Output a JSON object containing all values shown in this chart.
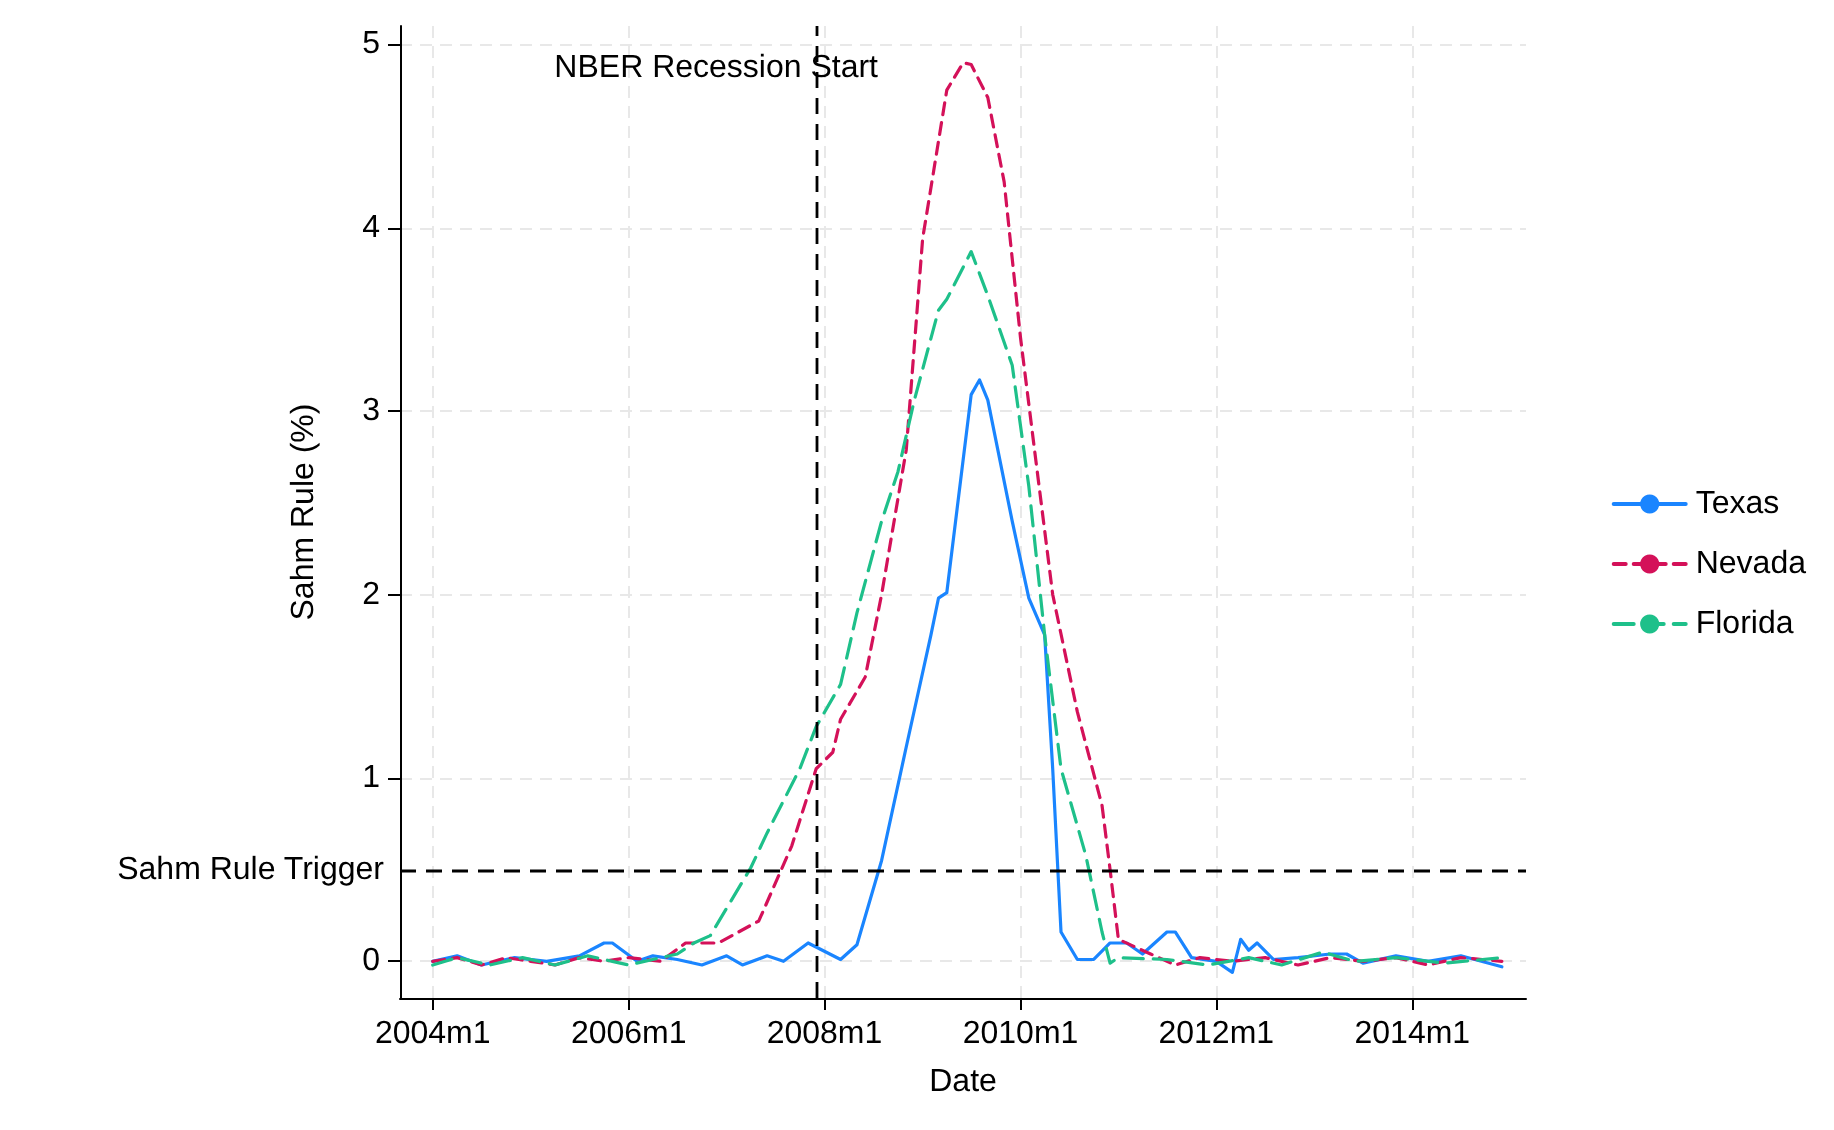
{
  "chart_data": {
    "type": "line",
    "xlabel": "Date",
    "ylabel": "Sahm Rule (%)",
    "xlim": [
      "2003-09",
      "2015-03"
    ],
    "ylim": [
      -0.2,
      5.1
    ],
    "xticks": [
      {
        "value": "2004-01",
        "label": "2004m1"
      },
      {
        "value": "2006-01",
        "label": "2006m1"
      },
      {
        "value": "2008-01",
        "label": "2008m1"
      },
      {
        "value": "2010-01",
        "label": "2010m1"
      },
      {
        "value": "2012-01",
        "label": "2012m1"
      },
      {
        "value": "2014-01",
        "label": "2014m1"
      }
    ],
    "yticks": [
      0,
      1,
      2,
      3,
      4,
      5
    ],
    "grid": true,
    "legend": "right",
    "marker": "none",
    "ref_lines": [
      {
        "axis": "x",
        "value": "2007-12",
        "label": "NBER Recession Start",
        "color": "#000000",
        "line_style": "dashed"
      },
      {
        "axis": "y",
        "value": 0.5,
        "label": "Sahm Rule Trigger",
        "color": "#000000",
        "line_style": "dashed"
      }
    ],
    "series": [
      {
        "name": "Texas",
        "color": "#1a85ff",
        "line_style": "solid",
        "x": [
          "2004-01",
          "2004-04",
          "2004-07",
          "2004-11",
          "2005-03",
          "2005-07",
          "2005-10",
          "2005-11",
          "2006-02",
          "2006-04",
          "2006-07",
          "2006-10",
          "2007-01",
          "2007-03",
          "2007-06",
          "2007-08",
          "2007-11",
          "2008-03",
          "2008-05",
          "2008-08",
          "2008-11",
          "2009-02",
          "2009-03",
          "2009-04",
          "2009-07",
          "2009-08",
          "2009-09",
          "2009-12",
          "2010-02",
          "2010-04",
          "2010-05",
          "2010-06",
          "2010-08",
          "2010-10",
          "2010-12",
          "2011-02",
          "2011-04",
          "2011-07",
          "2011-08",
          "2011-10",
          "2012-01",
          "2012-03",
          "2012-04",
          "2012-05",
          "2012-06",
          "2012-08",
          "2012-11",
          "2013-03",
          "2013-05",
          "2013-07",
          "2013-11",
          "2014-03",
          "2014-07",
          "2014-12"
        ],
        "values": [
          0,
          0.03,
          -0.02,
          0.02,
          0,
          0.03,
          0.1,
          0.1,
          0,
          0.03,
          0.01,
          -0.02,
          0.03,
          -0.02,
          0.03,
          0,
          0.1,
          0.01,
          0.09,
          0.55,
          1.17,
          1.78,
          1.98,
          2.01,
          3.09,
          3.17,
          3.06,
          2.4,
          1.98,
          1.78,
          1.05,
          0.16,
          0.01,
          0.01,
          0.1,
          0.1,
          0.04,
          0.16,
          0.16,
          0.02,
          0,
          -0.06,
          0.12,
          0.06,
          0.1,
          0.01,
          0.02,
          0.04,
          0.04,
          -0.01,
          0.03,
          0,
          0.03,
          -0.03
        ]
      },
      {
        "name": "Nevada",
        "color": "#d41159",
        "line_style": "dashed",
        "x": [
          "2004-01",
          "2004-04",
          "2004-07",
          "2004-10",
          "2005-01",
          "2005-04",
          "2005-07",
          "2005-10",
          "2006-01",
          "2006-05",
          "2006-08",
          "2006-12",
          "2007-05",
          "2007-09",
          "2007-12",
          "2008-02",
          "2008-03",
          "2008-06",
          "2008-08",
          "2008-11",
          "2009-01",
          "2009-04",
          "2009-06",
          "2009-07",
          "2009-09",
          "2009-11",
          "2010-01",
          "2010-03",
          "2010-05",
          "2010-08",
          "2010-11",
          "2010-12",
          "2011-01",
          "2011-05",
          "2011-08",
          "2011-11",
          "2012-03",
          "2012-07",
          "2012-11",
          "2013-03",
          "2013-07",
          "2013-11",
          "2014-03",
          "2014-07",
          "2014-12"
        ],
        "values": [
          0,
          0.02,
          -0.02,
          0.02,
          0,
          -0.02,
          0.02,
          0,
          0.02,
          0,
          0.1,
          0.1,
          0.22,
          0.63,
          1.05,
          1.14,
          1.32,
          1.55,
          2.0,
          2.79,
          3.94,
          4.75,
          4.9,
          4.89,
          4.71,
          4.25,
          3.4,
          2.71,
          2.0,
          1.36,
          0.85,
          0.5,
          0.12,
          0.04,
          -0.02,
          0.02,
          0,
          0.02,
          -0.02,
          0.02,
          0,
          0.02,
          -0.02,
          0.02,
          0
        ]
      },
      {
        "name": "Florida",
        "color": "#1ec08a",
        "line_style": "dashed",
        "x": [
          "2004-01",
          "2004-04",
          "2004-08",
          "2004-12",
          "2005-04",
          "2005-08",
          "2005-11",
          "2006-01",
          "2006-04",
          "2006-07",
          "2006-09",
          "2006-11",
          "2007-04",
          "2007-06",
          "2007-10",
          "2007-12",
          "2008-03",
          "2008-05",
          "2008-08",
          "2008-10",
          "2008-12",
          "2009-03",
          "2009-04",
          "2009-07",
          "2009-09",
          "2009-12",
          "2010-02",
          "2010-04",
          "2010-06",
          "2010-09",
          "2010-11",
          "2010-12",
          "2011-01",
          "2011-07",
          "2011-12",
          "2012-05",
          "2012-09",
          "2013-02",
          "2013-06",
          "2013-11",
          "2014-05",
          "2014-12"
        ],
        "values": [
          -0.02,
          0.02,
          -0.02,
          0.02,
          -0.02,
          0.03,
          0,
          -0.02,
          0.01,
          0.04,
          0.1,
          0.14,
          0.51,
          0.7,
          1.05,
          1.28,
          1.51,
          1.9,
          2.4,
          2.67,
          3.06,
          3.55,
          3.61,
          3.87,
          3.63,
          3.25,
          2.59,
          1.78,
          1.05,
          0.58,
          0.16,
          -0.01,
          0.02,
          0.01,
          -0.02,
          0.02,
          -0.02,
          0.05,
          0,
          0.02,
          -0.01,
          0.02
        ]
      }
    ]
  }
}
